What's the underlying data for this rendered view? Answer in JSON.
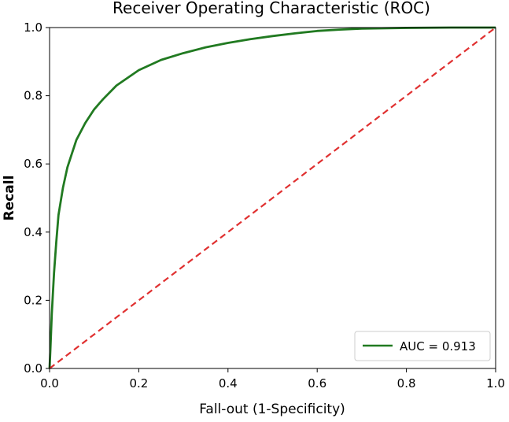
{
  "chart_data": {
    "type": "line",
    "title": "Receiver Operating Characteristic (ROC)",
    "xlabel": "Fall-out (1-Specificity)",
    "ylabel": "Recall",
    "xlim": [
      0.0,
      1.0
    ],
    "ylim": [
      0.0,
      1.0
    ],
    "xticks": [
      "0.0",
      "0.2",
      "0.4",
      "0.6",
      "0.8",
      "1.0"
    ],
    "yticks": [
      "0.0",
      "0.2",
      "0.4",
      "0.6",
      "0.8",
      "1.0"
    ],
    "grid": false,
    "legend_position": "lower-right",
    "series": [
      {
        "name": "AUC = 0.913",
        "color": "#217a21",
        "style": "solid",
        "x": [
          0.0,
          0.002,
          0.005,
          0.01,
          0.015,
          0.02,
          0.03,
          0.04,
          0.05,
          0.06,
          0.08,
          0.1,
          0.12,
          0.15,
          0.2,
          0.25,
          0.3,
          0.35,
          0.4,
          0.45,
          0.5,
          0.55,
          0.6,
          0.65,
          0.7,
          0.8,
          0.9,
          1.0
        ],
        "y": [
          0.0,
          0.06,
          0.16,
          0.28,
          0.37,
          0.45,
          0.53,
          0.59,
          0.63,
          0.67,
          0.72,
          0.76,
          0.79,
          0.83,
          0.875,
          0.905,
          0.925,
          0.942,
          0.955,
          0.966,
          0.975,
          0.983,
          0.99,
          0.994,
          0.997,
          0.999,
          1.0,
          1.0
        ]
      },
      {
        "color": "#e03030",
        "style": "dashed",
        "x": [
          0.0,
          1.0
        ],
        "y": [
          0.0,
          1.0
        ]
      }
    ]
  }
}
